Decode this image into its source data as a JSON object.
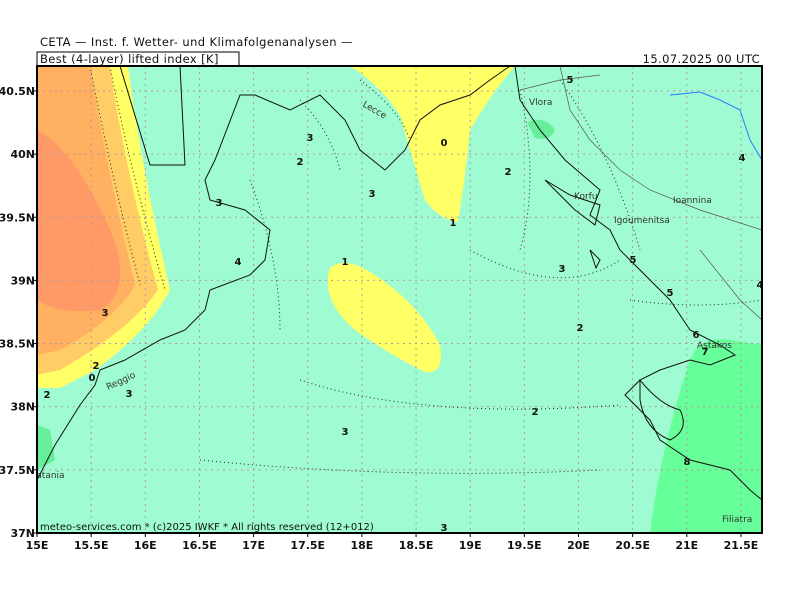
{
  "header": {
    "institute": "CETA — Inst. f. Wetter- und Klimafolgenanalysen —",
    "field": "Best (4-layer) lifted index [K]",
    "time": "15.07.2025 00 UTC"
  },
  "lon_ticks": [
    {
      "value": 15,
      "label": "15E"
    },
    {
      "value": 15.5,
      "label": "15.5E"
    },
    {
      "value": 16,
      "label": "16E"
    },
    {
      "value": 16.5,
      "label": "16.5E"
    },
    {
      "value": 17,
      "label": "17E"
    },
    {
      "value": 17.5,
      "label": "17.5E"
    },
    {
      "value": 18,
      "label": "18E"
    },
    {
      "value": 18.5,
      "label": "18.5E"
    },
    {
      "value": 19,
      "label": "19E"
    },
    {
      "value": 19.5,
      "label": "19.5E"
    },
    {
      "value": 20,
      "label": "20E"
    },
    {
      "value": 20.5,
      "label": "20.5E"
    },
    {
      "value": 21,
      "label": "21E"
    },
    {
      "value": 21.5,
      "label": "21.5E"
    }
  ],
  "lat_ticks": [
    {
      "value": 37,
      "label": "37N"
    },
    {
      "value": 37.5,
      "label": "37.5N"
    },
    {
      "value": 38,
      "label": "38N"
    },
    {
      "value": 38.5,
      "label": "38.5N"
    },
    {
      "value": 39,
      "label": "39N"
    },
    {
      "value": 39.5,
      "label": "39.5N"
    },
    {
      "value": 40,
      "label": "40N"
    },
    {
      "value": 40.5,
      "label": "40.5N"
    }
  ],
  "places": [
    "Lecce",
    "Vlora",
    "Korfu",
    "Igoumenitsa",
    "Ioannina",
    "Astakos",
    "Reggio",
    "Catania",
    "Filiatra"
  ],
  "contour_labels": [
    5,
    3,
    2,
    0,
    2,
    4,
    3,
    3,
    1,
    4,
    1,
    3,
    5,
    4,
    3,
    2,
    5,
    6,
    7,
    2,
    0,
    2,
    3,
    2,
    3,
    8,
    3
  ],
  "footer": "meteo-services.com * (c)2025 IWKF * All rights reserved (12+012)"
}
